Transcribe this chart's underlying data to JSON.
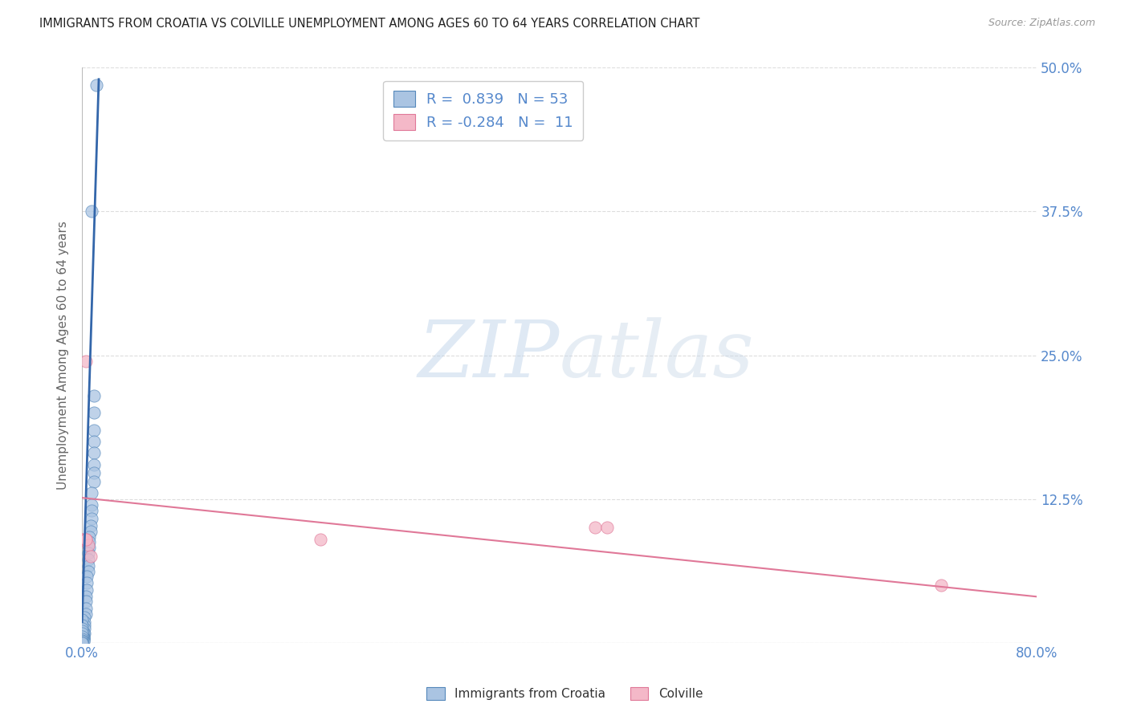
{
  "title": "IMMIGRANTS FROM CROATIA VS COLVILLE UNEMPLOYMENT AMONG AGES 60 TO 64 YEARS CORRELATION CHART",
  "source": "Source: ZipAtlas.com",
  "ylabel": "Unemployment Among Ages 60 to 64 years",
  "xlim": [
    0.0,
    0.8
  ],
  "ylim": [
    0.0,
    0.5
  ],
  "xticks": [
    0.0,
    0.1,
    0.2,
    0.3,
    0.4,
    0.5,
    0.6,
    0.7,
    0.8
  ],
  "xticklabels": [
    "0.0%",
    "",
    "",
    "",
    "",
    "",
    "",
    "",
    "80.0%"
  ],
  "yticks": [
    0.0,
    0.125,
    0.25,
    0.375,
    0.5
  ],
  "yticklabels": [
    "",
    "12.5%",
    "25.0%",
    "37.5%",
    "50.0%"
  ],
  "blue_color": "#aac4e2",
  "pink_color": "#f4b8c8",
  "blue_edge_color": "#5588bb",
  "pink_edge_color": "#e07898",
  "blue_line_color": "#3366aa",
  "pink_line_color": "#e07898",
  "blue_r": 0.839,
  "blue_n": 53,
  "pink_r": -0.284,
  "pink_n": 11,
  "blue_scatter_x": [
    0.012,
    0.008,
    0.01,
    0.01,
    0.01,
    0.01,
    0.01,
    0.01,
    0.01,
    0.01,
    0.008,
    0.008,
    0.008,
    0.008,
    0.007,
    0.007,
    0.006,
    0.006,
    0.006,
    0.005,
    0.005,
    0.005,
    0.005,
    0.004,
    0.004,
    0.004,
    0.003,
    0.003,
    0.003,
    0.003,
    0.002,
    0.002,
    0.002,
    0.002,
    0.002,
    0.001,
    0.001,
    0.001,
    0.001,
    0.001,
    0.001,
    0.001,
    0.0,
    0.0,
    0.0,
    0.0,
    0.0,
    0.0,
    0.0,
    0.0,
    0.0,
    0.0,
    0.0
  ],
  "blue_scatter_y": [
    0.485,
    0.375,
    0.215,
    0.2,
    0.185,
    0.175,
    0.165,
    0.155,
    0.148,
    0.14,
    0.13,
    0.12,
    0.115,
    0.108,
    0.102,
    0.097,
    0.092,
    0.088,
    0.083,
    0.078,
    0.072,
    0.067,
    0.062,
    0.058,
    0.052,
    0.046,
    0.04,
    0.036,
    0.03,
    0.025,
    0.022,
    0.018,
    0.015,
    0.012,
    0.008,
    0.008,
    0.005,
    0.004,
    0.004,
    0.003,
    0.002,
    0.001,
    0.02,
    0.015,
    0.012,
    0.01,
    0.008,
    0.005,
    0.003,
    0.002,
    0.001,
    0.0,
    0.0
  ],
  "pink_scatter_x": [
    0.0,
    0.0,
    0.003,
    0.003,
    0.005,
    0.007,
    0.2,
    0.43,
    0.44,
    0.72,
    0.003
  ],
  "pink_scatter_y": [
    0.09,
    0.09,
    0.245,
    0.09,
    0.085,
    0.075,
    0.09,
    0.1,
    0.1,
    0.05,
    0.09
  ],
  "blue_trend_x": [
    0.0,
    0.014
  ],
  "blue_trend_y": [
    0.018,
    0.49
  ],
  "pink_trend_x": [
    0.0,
    0.8
  ],
  "pink_trend_y": [
    0.126,
    0.04
  ],
  "watermark_zip": "ZIP",
  "watermark_atlas": "atlas",
  "legend_label_blue": "Immigrants from Croatia",
  "legend_label_pink": "Colville",
  "title_color": "#222222",
  "axis_label_color": "#666666",
  "tick_color": "#5588cc",
  "grid_color": "#dddddd",
  "background_color": "#ffffff"
}
